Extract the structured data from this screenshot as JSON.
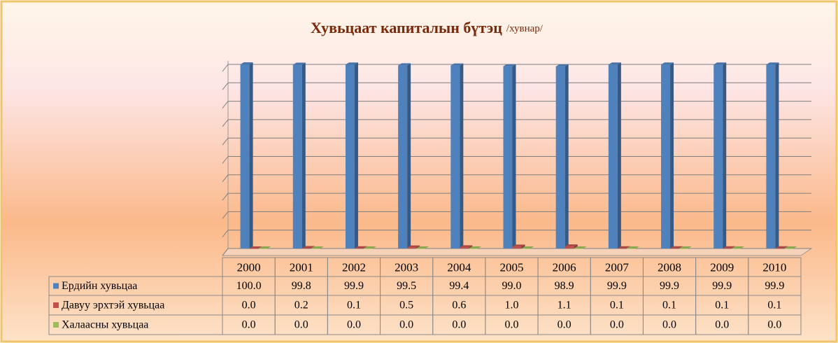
{
  "chart_data": {
    "type": "bar",
    "title": "Хувьцаат капиталын бүтэц",
    "subtitle": "/хувнар/",
    "categories": [
      "2000",
      "2001",
      "2002",
      "2003",
      "2004",
      "2005",
      "2006",
      "2007",
      "2008",
      "2009",
      "2010"
    ],
    "series": [
      {
        "name": "Ердийн хувьцаа",
        "color": "#4f81bd",
        "values": [
          100.0,
          99.8,
          99.9,
          99.5,
          99.4,
          99.0,
          98.9,
          99.9,
          99.9,
          99.9,
          99.9
        ],
        "value_labels": [
          "100.0",
          "99.8",
          "99.9",
          "99.5",
          "99.4",
          "99.0",
          "98.9",
          "99.9",
          "99.9",
          "99.9",
          "99.9"
        ]
      },
      {
        "name": "Давуу эрхтэй хувьцаа",
        "color": "#c0504d",
        "values": [
          0.0,
          0.2,
          0.1,
          0.5,
          0.6,
          1.0,
          1.1,
          0.1,
          0.1,
          0.1,
          0.1
        ],
        "value_labels": [
          "0.0",
          "0.2",
          "0.1",
          "0.5",
          "0.6",
          "1.0",
          "1.1",
          "0.1",
          "0.1",
          "0.1",
          "0.1"
        ]
      },
      {
        "name": "Халаасны хувьцаа",
        "color": "#9bbb59",
        "values": [
          0.0,
          0.0,
          0.0,
          0.0,
          0.0,
          0.0,
          0.0,
          0.0,
          0.0,
          0.0,
          0.0
        ],
        "value_labels": [
          "0.0",
          "0.0",
          "0.0",
          "0.0",
          "0.0",
          "0.0",
          "0.0",
          "0.0",
          "0.0",
          "0.0",
          "0.0"
        ]
      }
    ],
    "ylim": [
      0,
      100
    ],
    "yticks": [
      0,
      10,
      20,
      30,
      40,
      50,
      60,
      70,
      80,
      90,
      100
    ],
    "grid": true
  }
}
